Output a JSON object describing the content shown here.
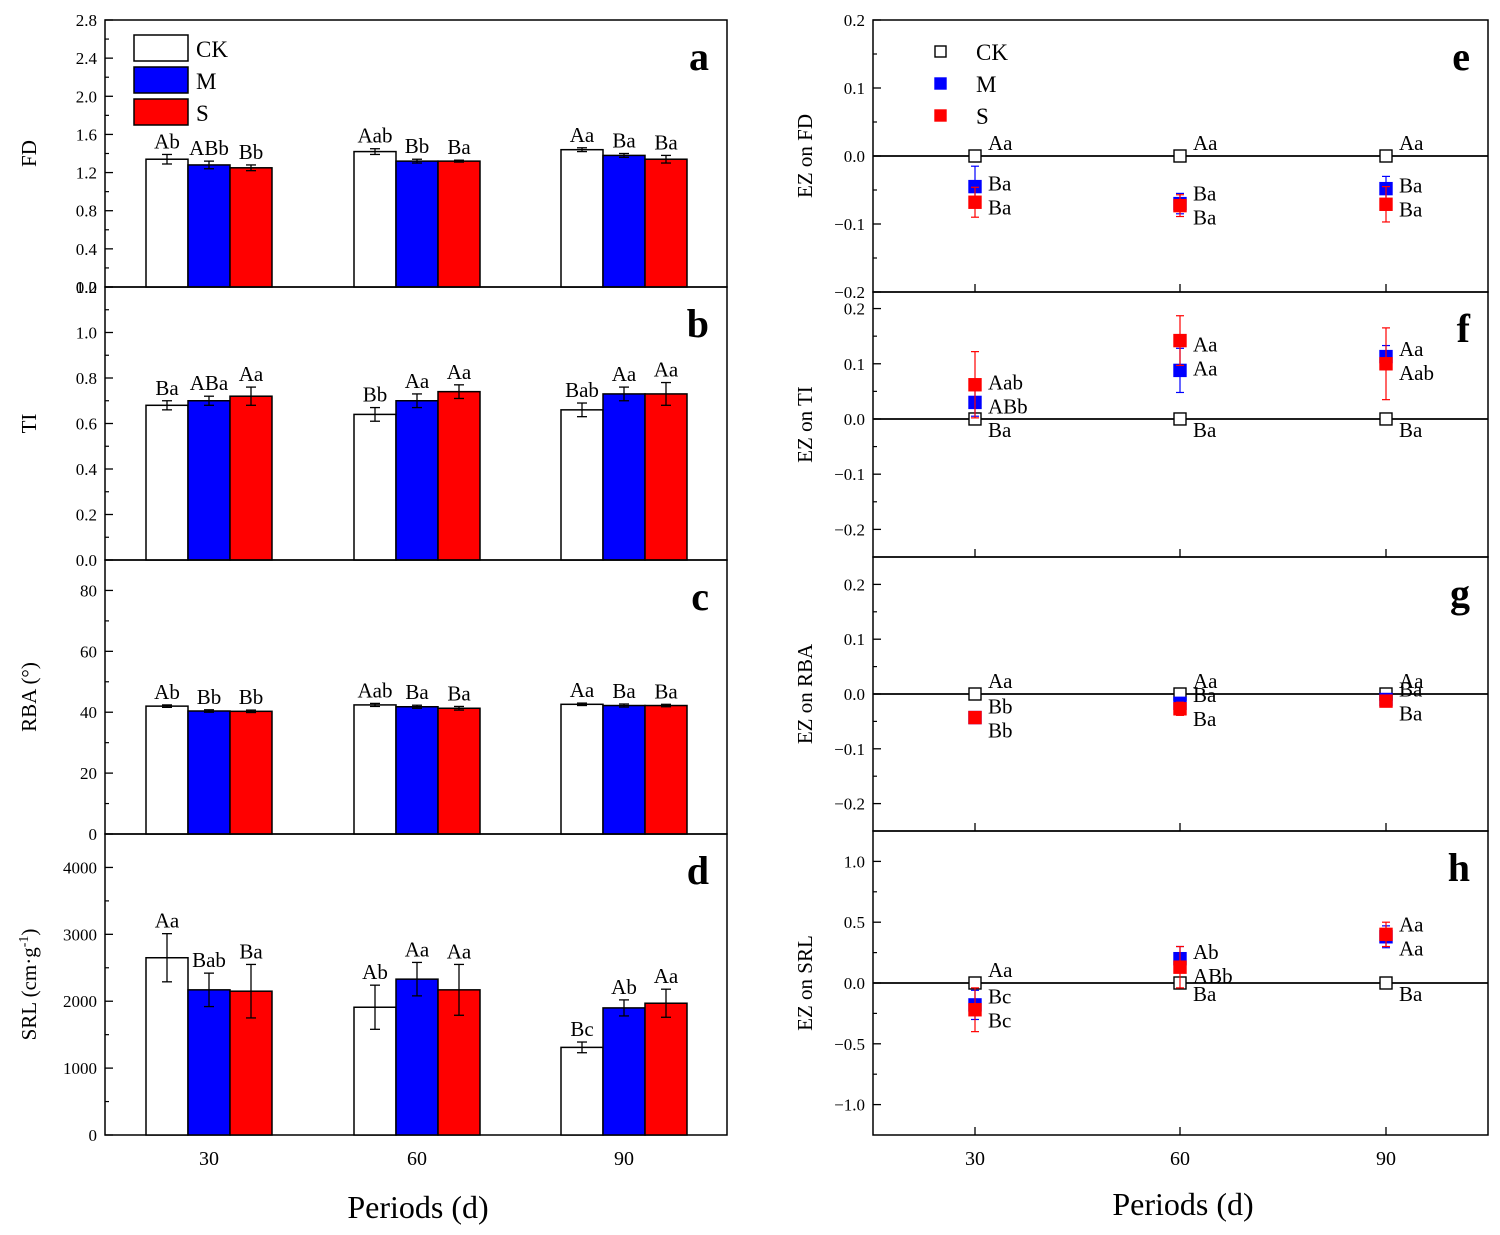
{
  "figure": {
    "xlabel": "Periods (d)",
    "legend": [
      "CK",
      "M",
      "S"
    ],
    "colors": {
      "CK": "#ffffff",
      "M": "#0000ff",
      "S": "#ff0000",
      "axis": "#000000"
    }
  },
  "chart_data": [
    {
      "id": "a",
      "type": "bar",
      "letter": "a",
      "ylabel": "FD",
      "categories": [
        "30",
        "60",
        "90"
      ],
      "ylim": [
        0,
        2.8
      ],
      "yticks": [
        "0.0",
        "0.4",
        "0.8",
        "1.2",
        "1.6",
        "2.0",
        "2.4",
        "2.8"
      ],
      "legend": true,
      "series": [
        {
          "name": "CK",
          "values": [
            1.34,
            1.42,
            1.44
          ],
          "errors": [
            0.05,
            0.03,
            0.02
          ],
          "labels": [
            "Ab",
            "Aab",
            "Aa"
          ]
        },
        {
          "name": "M",
          "values": [
            1.28,
            1.32,
            1.38
          ],
          "errors": [
            0.04,
            0.02,
            0.02
          ],
          "labels": [
            "ABb",
            "Bb",
            "Ba"
          ]
        },
        {
          "name": "S",
          "values": [
            1.25,
            1.32,
            1.34
          ],
          "errors": [
            0.03,
            0.01,
            0.04
          ],
          "labels": [
            "Bb",
            "Ba",
            "Ba"
          ]
        }
      ]
    },
    {
      "id": "b",
      "type": "bar",
      "letter": "b",
      "ylabel": "TI",
      "categories": [
        "30",
        "60",
        "90"
      ],
      "ylim": [
        0,
        1.2
      ],
      "yticks": [
        "0.0",
        "0.2",
        "0.4",
        "0.6",
        "0.8",
        "1.0",
        "1.2"
      ],
      "legend": false,
      "series": [
        {
          "name": "CK",
          "values": [
            0.68,
            0.64,
            0.66
          ],
          "errors": [
            0.02,
            0.03,
            0.03
          ],
          "labels": [
            "Ba",
            "Bb",
            "Bab"
          ]
        },
        {
          "name": "M",
          "values": [
            0.7,
            0.7,
            0.73
          ],
          "errors": [
            0.02,
            0.03,
            0.03
          ],
          "labels": [
            "ABa",
            "Aa",
            "Aa"
          ]
        },
        {
          "name": "S",
          "values": [
            0.72,
            0.74,
            0.73
          ],
          "errors": [
            0.04,
            0.03,
            0.05
          ],
          "labels": [
            "Aa",
            "Aa",
            "Aa"
          ]
        }
      ]
    },
    {
      "id": "c",
      "type": "bar",
      "letter": "c",
      "ylabel": "RBA (°)",
      "categories": [
        "30",
        "60",
        "90"
      ],
      "ylim": [
        0,
        90
      ],
      "yticks": [
        "0",
        "20",
        "40",
        "60",
        "80"
      ],
      "legend": false,
      "series": [
        {
          "name": "CK",
          "values": [
            42.0,
            42.4,
            42.6
          ],
          "errors": [
            0.4,
            0.5,
            0.4
          ],
          "labels": [
            "Ab",
            "Aab",
            "Aa"
          ]
        },
        {
          "name": "M",
          "values": [
            40.4,
            41.8,
            42.2
          ],
          "errors": [
            0.4,
            0.5,
            0.5
          ],
          "labels": [
            "Bb",
            "Ba",
            "Ba"
          ]
        },
        {
          "name": "S",
          "values": [
            40.3,
            41.3,
            42.2
          ],
          "errors": [
            0.4,
            0.6,
            0.4
          ],
          "labels": [
            "Bb",
            "Ba",
            "Ba"
          ]
        }
      ]
    },
    {
      "id": "d",
      "type": "bar",
      "letter": "d",
      "ylabel": "SRL (cm·g",
      "ylabel_sup": "-1",
      "ylabel_end": ")",
      "categories": [
        "30",
        "60",
        "90"
      ],
      "ylim": [
        0,
        4500
      ],
      "yticks": [
        "0",
        "1000",
        "2000",
        "3000",
        "4000"
      ],
      "legend": false,
      "series": [
        {
          "name": "CK",
          "values": [
            2650,
            1910,
            1310
          ],
          "errors": [
            360,
            330,
            80
          ],
          "labels": [
            "Aa",
            "Ab",
            "Bc"
          ]
        },
        {
          "name": "M",
          "values": [
            2170,
            2330,
            1900
          ],
          "errors": [
            250,
            250,
            120
          ],
          "labels": [
            "Bab",
            "Aa",
            "Ab"
          ]
        },
        {
          "name": "S",
          "values": [
            2150,
            2170,
            1970
          ],
          "errors": [
            400,
            380,
            210
          ],
          "labels": [
            "Ba",
            "Aa",
            "Aa"
          ]
        }
      ]
    },
    {
      "id": "e",
      "type": "scatter",
      "letter": "e",
      "ylabel": "EZ on FD",
      "categories": [
        "30",
        "60",
        "90"
      ],
      "ylim": [
        -0.2,
        0.2
      ],
      "yticks": [
        "-0.2",
        "-0.1",
        "0.0",
        "0.1",
        "0.2"
      ],
      "legend": true,
      "series": [
        {
          "name": "CK",
          "values": [
            0,
            0,
            0
          ],
          "errors": [
            0,
            0,
            0
          ],
          "labels": [
            "Aa",
            "Aa",
            "Aa"
          ]
        },
        {
          "name": "M",
          "values": [
            -0.045,
            -0.07,
            -0.048
          ],
          "errors": [
            0.03,
            0.015,
            0.018
          ],
          "labels": [
            "Ba",
            "Ba",
            "Ba"
          ]
        },
        {
          "name": "S",
          "values": [
            -0.068,
            -0.073,
            -0.071
          ],
          "errors": [
            0.022,
            0.016,
            0.026
          ],
          "labels": [
            "Ba",
            "Ba",
            "Ba"
          ]
        }
      ]
    },
    {
      "id": "f",
      "type": "scatter",
      "letter": "f",
      "ylabel": "EZ on TI",
      "categories": [
        "30",
        "60",
        "90"
      ],
      "ylim": [
        -0.25,
        0.23
      ],
      "yticks": [
        "-0.2",
        "-0.1",
        "0.0",
        "0.1",
        "0.2"
      ],
      "legend": false,
      "series": [
        {
          "name": "CK",
          "values": [
            0,
            0,
            0
          ],
          "errors": [
            0,
            0,
            0
          ],
          "labels": [
            "Ba",
            "Ba",
            "Ba"
          ]
        },
        {
          "name": "M",
          "values": [
            0.03,
            0.088,
            0.113
          ],
          "errors": [
            0.025,
            0.04,
            0.02
          ],
          "labels": [
            "ABb",
            "Aa",
            "Aa"
          ]
        },
        {
          "name": "S",
          "values": [
            0.062,
            0.142,
            0.1
          ],
          "errors": [
            0.06,
            0.045,
            0.065
          ],
          "labels": [
            "Aab",
            "Aa",
            "Aab"
          ]
        }
      ]
    },
    {
      "id": "g",
      "type": "scatter",
      "letter": "g",
      "ylabel": "EZ on RBA",
      "categories": [
        "30",
        "60",
        "90"
      ],
      "ylim": [
        -0.25,
        0.25
      ],
      "yticks": [
        "-0.2",
        "-0.1",
        "0.0",
        "0.1",
        "0.2"
      ],
      "legend": false,
      "series": [
        {
          "name": "CK",
          "values": [
            0,
            0,
            0
          ],
          "errors": [
            0,
            0,
            0
          ],
          "labels": [
            "Aa",
            "Aa",
            "Aa"
          ]
        },
        {
          "name": "M",
          "values": [
            -0.043,
            -0.017,
            -0.01
          ],
          "errors": [
            0.006,
            0.01,
            0.01
          ],
          "labels": [
            "Bb",
            "Ba",
            "Ba"
          ]
        },
        {
          "name": "S",
          "values": [
            -0.043,
            -0.027,
            -0.013
          ],
          "errors": [
            0.006,
            0.012,
            0.008
          ],
          "labels": [
            "Bb",
            "Ba",
            "Ba"
          ]
        }
      ]
    },
    {
      "id": "h",
      "type": "scatter",
      "letter": "h",
      "ylabel": "EZ on SRL",
      "categories": [
        "30",
        "60",
        "90"
      ],
      "ylim": [
        -1.25,
        1.25
      ],
      "yticks": [
        "-1.0",
        "-0.5",
        "0.0",
        "0.5",
        "1.0"
      ],
      "legend": false,
      "series": [
        {
          "name": "CK",
          "values": [
            0,
            0,
            0
          ],
          "errors": [
            0,
            0,
            0
          ],
          "labels": [
            "Aa",
            "Ba",
            "Ba"
          ]
        },
        {
          "name": "M",
          "values": [
            -0.18,
            0.2,
            0.38
          ],
          "errors": [
            0.12,
            0.1,
            0.09
          ],
          "labels": [
            "Bc",
            "Ab",
            "Aa"
          ]
        },
        {
          "name": "S",
          "values": [
            -0.22,
            0.13,
            0.4
          ],
          "errors": [
            0.18,
            0.17,
            0.1
          ],
          "labels": [
            "Bc",
            "ABb",
            "Aa"
          ]
        }
      ]
    }
  ]
}
